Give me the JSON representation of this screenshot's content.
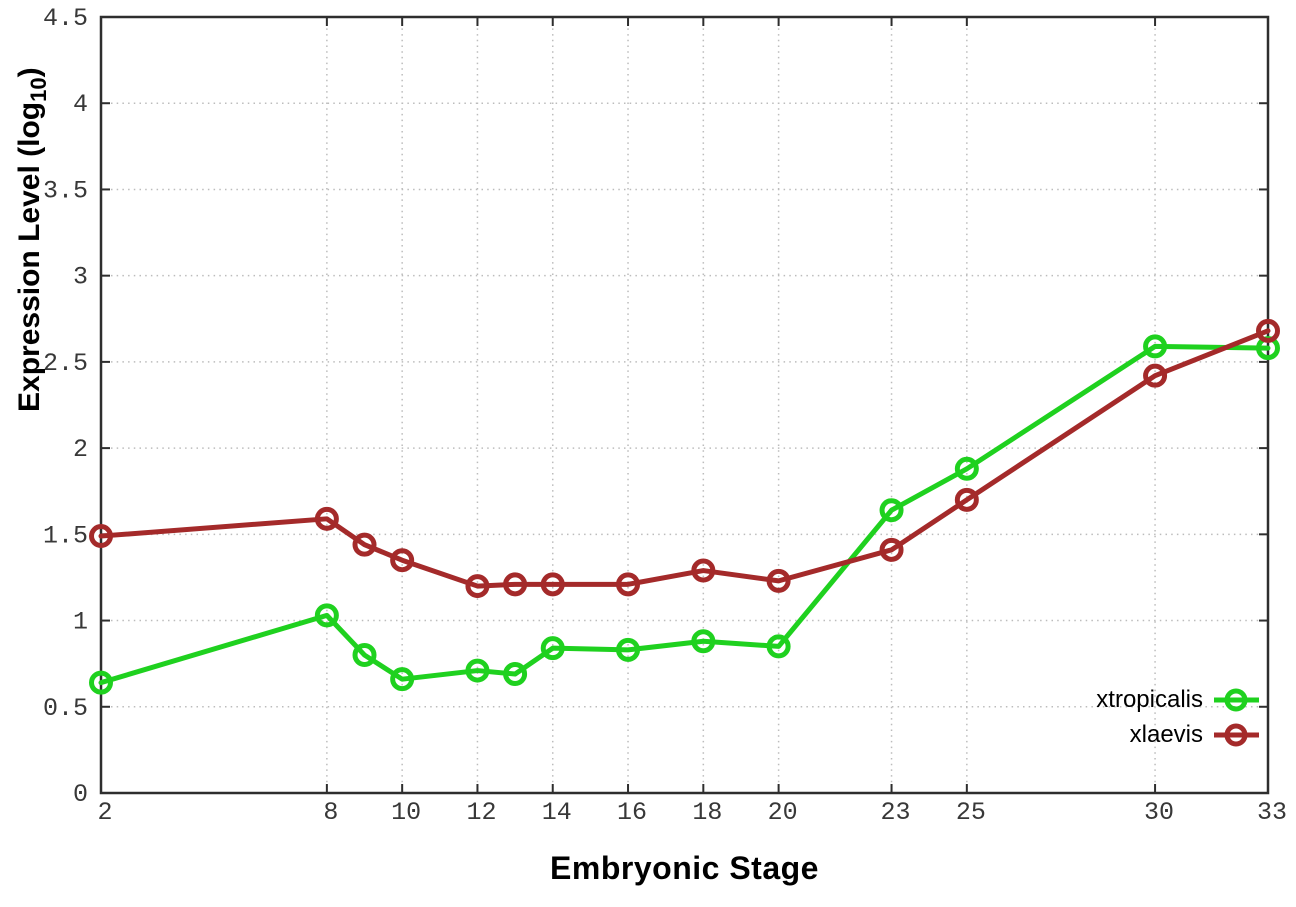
{
  "figure": {
    "background": "#ffffff"
  },
  "chart_data": {
    "type": "line",
    "title": "",
    "xlabel": "Embryonic Stage",
    "ylabel": {
      "pre": "Expression Level (log",
      "sub": "10",
      "post": ")"
    },
    "x": [
      2,
      8,
      9,
      10,
      12,
      13,
      14,
      16,
      18,
      20,
      23,
      25,
      30,
      33
    ],
    "series": [
      {
        "name": "xtropicalis",
        "color": "#1fd11f",
        "values": [
          0.64,
          1.03,
          0.8,
          0.66,
          0.71,
          0.69,
          0.84,
          0.83,
          0.88,
          0.85,
          1.64,
          1.88,
          2.59,
          2.58
        ]
      },
      {
        "name": "xlaevis",
        "color": "#a42a2a",
        "values": [
          1.49,
          1.59,
          1.44,
          1.35,
          1.2,
          1.21,
          1.21,
          1.21,
          1.29,
          1.23,
          1.41,
          1.7,
          2.42,
          2.68
        ]
      }
    ],
    "xticks": [
      2,
      8,
      10,
      12,
      14,
      16,
      18,
      20,
      23,
      25,
      30,
      33
    ],
    "yticks": [
      0,
      0.5,
      1,
      1.5,
      2,
      2.5,
      3,
      3.5,
      4,
      4.5
    ],
    "xlim": [
      2,
      33
    ],
    "ylim": [
      0,
      4.5
    ],
    "grid": true,
    "legend_position": "bottom-right",
    "marker": "open-circle",
    "style": {
      "grid_color": "#bcbcbc",
      "border_color": "#2e2e2e",
      "tick_text_color": "#383838",
      "line_width": 5,
      "marker_radius": 9.5,
      "marker_stroke": 5
    }
  }
}
